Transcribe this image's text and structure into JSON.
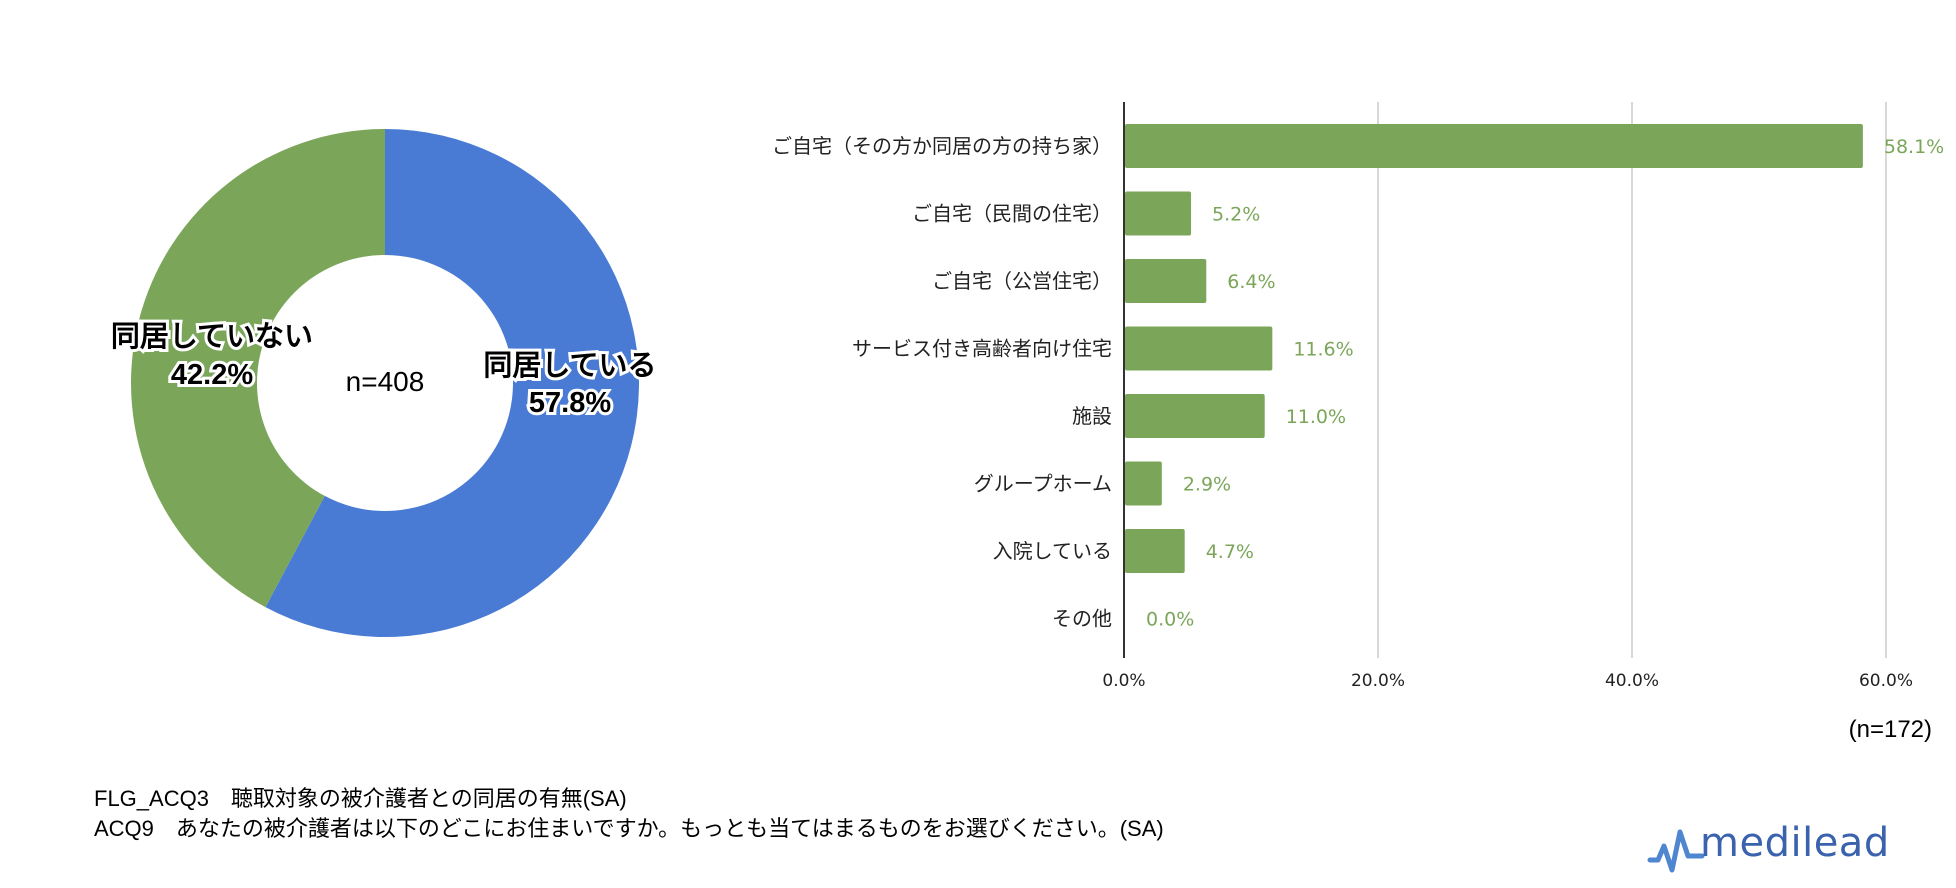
{
  "chart_data": [
    {
      "type": "pie",
      "slices": [
        {
          "label": "同居している",
          "value": 57.8,
          "value_label": "57.8%",
          "color": "#4a7bd4"
        },
        {
          "label": "同居していない",
          "value": 42.2,
          "value_label": "42.2%",
          "color": "#7ba65a"
        }
      ],
      "center_label": "n=408",
      "donut": true
    },
    {
      "type": "bar",
      "orientation": "horizontal",
      "categories": [
        "ご自宅（その方か同居の方の持ち家）",
        "ご自宅（民間の住宅）",
        "ご自宅（公営住宅）",
        "サービス付き高齢者向け住宅",
        "施設",
        "グループホーム",
        "入院している",
        "その他"
      ],
      "values": [
        58.1,
        5.2,
        6.4,
        11.6,
        11.0,
        2.9,
        4.7,
        0.0
      ],
      "value_labels": [
        "58.1%",
        "5.2%",
        "6.4%",
        "11.6%",
        "11.0%",
        "2.9%",
        "4.7%",
        "0.0%"
      ],
      "xlim": [
        0,
        60
      ],
      "xticks": [
        {
          "value": 0,
          "label": "0.0%"
        },
        {
          "value": 20,
          "label": "20.0%"
        },
        {
          "value": 40,
          "label": "40.0%"
        },
        {
          "value": 60,
          "label": "60.0%"
        }
      ],
      "grid": true,
      "bar_color": "#7ba65a",
      "n_label": "(n=172)"
    }
  ],
  "notes": {
    "line1": "FLG_ACQ3　聴取対象の被介護者との同居の有無(SA)",
    "line2": "ACQ9　あなたの被介護者は以下のどこにお住まいですか。もっとも当てはまるものをお選びください。(SA)"
  },
  "logo": {
    "text": "medilead",
    "icon": "pulse-wave-icon",
    "color": "#3a62ad"
  }
}
